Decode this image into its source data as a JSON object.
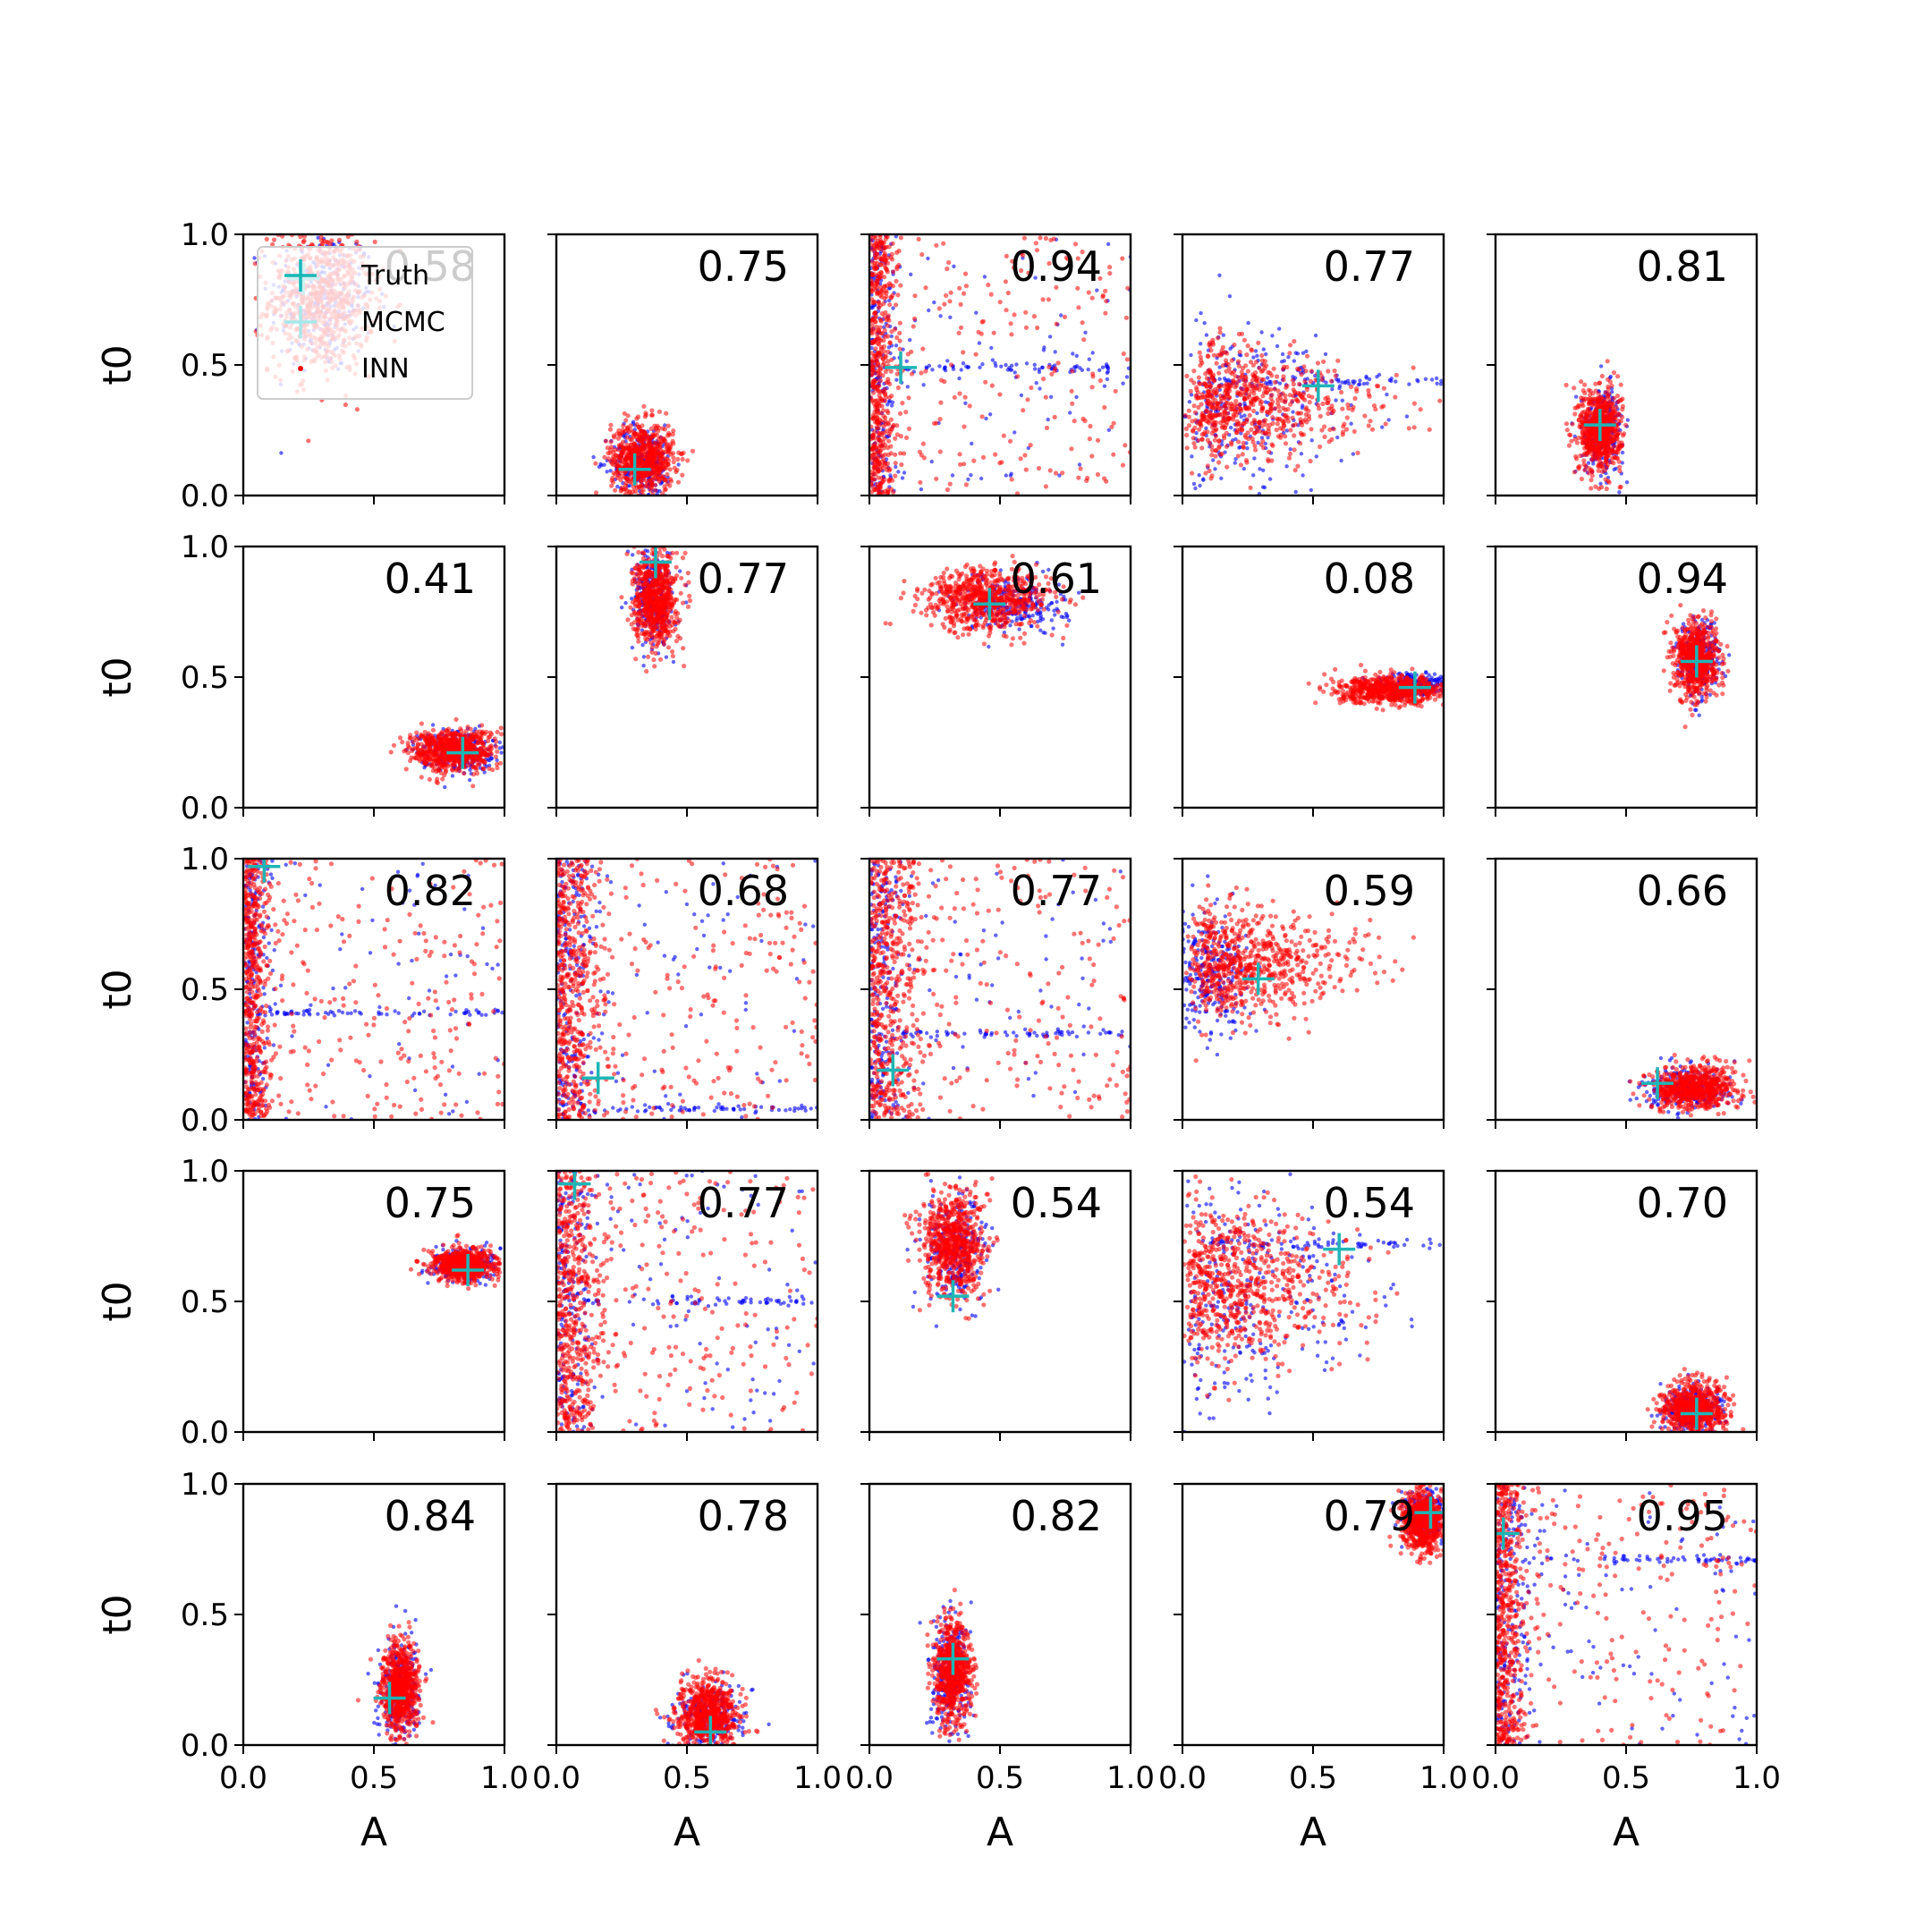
{
  "figure": {
    "rows": 5,
    "cols": 5,
    "xlabel": "A",
    "ylabel": "t0",
    "xlim": [
      0,
      1
    ],
    "ylim": [
      0,
      1
    ],
    "xticks": [
      "0.0",
      "0.5",
      "1.0"
    ],
    "yticks": [
      "0.0",
      "0.5",
      "1.0"
    ],
    "legend": {
      "placement": "upper-left of first panel",
      "entries": [
        {
          "label": "Truth",
          "color": "#17b8b8",
          "marker": "plus"
        },
        {
          "label": "MCMC",
          "color": "#a8e8e8",
          "marker": "plus"
        },
        {
          "label": "INN",
          "color": "#ff0000",
          "marker": "dot"
        }
      ]
    },
    "colors": {
      "truth": "#1fb5b5",
      "mcmc": "#0000ff",
      "inn": "#ff0000"
    }
  },
  "chart_data": [
    {
      "type": "scatter",
      "corner_value": "0.58",
      "truth": {
        "A": 0.23,
        "t0": 0.83
      },
      "inn": {
        "kind": "gauss",
        "cx": 0.3,
        "cy": 0.75,
        "sx": 0.1,
        "sy": 0.14
      },
      "mcmc": {
        "kind": "gauss",
        "cx": 0.3,
        "cy": 0.75,
        "sx": 0.1,
        "sy": 0.14
      }
    },
    {
      "type": "scatter",
      "corner_value": "0.75",
      "truth": {
        "A": 0.3,
        "t0": 0.1
      },
      "inn": {
        "kind": "gauss",
        "cx": 0.33,
        "cy": 0.14,
        "sx": 0.06,
        "sy": 0.07
      },
      "mcmc": {
        "kind": "gauss",
        "cx": 0.33,
        "cy": 0.13,
        "sx": 0.06,
        "sy": 0.07
      }
    },
    {
      "type": "scatter",
      "corner_value": "0.94",
      "truth": {
        "A": 0.12,
        "t0": 0.49
      },
      "inn": {
        "kind": "wall",
        "cx": 0.05,
        "cy": 0.5,
        "w": 0.05
      },
      "mcmc": {
        "kind": "wall",
        "cx": 0.05,
        "cy": 0.5,
        "w": 0.05,
        "line_y": 0.49
      }
    },
    {
      "type": "scatter",
      "corner_value": "0.77",
      "truth": {
        "A": 0.52,
        "t0": 0.42
      },
      "inn": {
        "kind": "fan",
        "cx": 0.1,
        "cy": 0.35,
        "sy": 0.12
      },
      "mcmc": {
        "kind": "fan",
        "cx": 0.1,
        "cy": 0.35,
        "sy": 0.18,
        "line_y": 0.44
      }
    },
    {
      "type": "scatter",
      "corner_value": "0.81",
      "truth": {
        "A": 0.4,
        "t0": 0.27
      },
      "inn": {
        "kind": "gauss",
        "cx": 0.4,
        "cy": 0.25,
        "sx": 0.04,
        "sy": 0.08
      },
      "mcmc": {
        "kind": "gauss",
        "cx": 0.41,
        "cy": 0.25,
        "sx": 0.04,
        "sy": 0.08
      }
    },
    {
      "type": "scatter",
      "corner_value": "0.41",
      "truth": {
        "A": 0.84,
        "t0": 0.21
      },
      "inn": {
        "kind": "gauss",
        "cx": 0.8,
        "cy": 0.22,
        "sx": 0.08,
        "sy": 0.04
      },
      "mcmc": {
        "kind": "gauss",
        "cx": 0.82,
        "cy": 0.22,
        "sx": 0.07,
        "sy": 0.04
      }
    },
    {
      "type": "scatter",
      "corner_value": "0.77",
      "truth": {
        "A": 0.38,
        "t0": 0.94
      },
      "inn": {
        "kind": "gauss",
        "cx": 0.38,
        "cy": 0.8,
        "sx": 0.04,
        "sy": 0.09
      },
      "mcmc": {
        "kind": "gauss",
        "cx": 0.37,
        "cy": 0.8,
        "sx": 0.04,
        "sy": 0.1
      }
    },
    {
      "type": "scatter",
      "corner_value": "0.61",
      "truth": {
        "A": 0.46,
        "t0": 0.78
      },
      "inn": {
        "kind": "gauss",
        "cx": 0.45,
        "cy": 0.8,
        "sx": 0.12,
        "sy": 0.06
      },
      "mcmc": {
        "kind": "gauss",
        "cx": 0.55,
        "cy": 0.78,
        "sx": 0.1,
        "sy": 0.05
      }
    },
    {
      "type": "scatter",
      "corner_value": "0.08",
      "truth": {
        "A": 0.89,
        "t0": 0.46
      },
      "inn": {
        "kind": "gauss",
        "cx": 0.8,
        "cy": 0.45,
        "sx": 0.1,
        "sy": 0.025
      },
      "mcmc": {
        "kind": "gauss",
        "cx": 0.88,
        "cy": 0.47,
        "sx": 0.07,
        "sy": 0.02
      }
    },
    {
      "type": "scatter",
      "corner_value": "0.94",
      "truth": {
        "A": 0.77,
        "t0": 0.56
      },
      "inn": {
        "kind": "gauss",
        "cx": 0.77,
        "cy": 0.57,
        "sx": 0.04,
        "sy": 0.07
      },
      "mcmc": {
        "kind": "gauss",
        "cx": 0.78,
        "cy": 0.57,
        "sx": 0.04,
        "sy": 0.07
      }
    },
    {
      "type": "scatter",
      "corner_value": "0.82",
      "truth": {
        "A": 0.08,
        "t0": 0.97
      },
      "inn": {
        "kind": "wall",
        "cx": 0.05,
        "cy": 0.55,
        "w": 0.05
      },
      "mcmc": {
        "kind": "wall",
        "cx": 0.04,
        "cy": 0.5,
        "w": 0.04,
        "line_y": 0.41
      }
    },
    {
      "type": "scatter",
      "corner_value": "0.68",
      "truth": {
        "A": 0.16,
        "t0": 0.16
      },
      "inn": {
        "kind": "wall",
        "cx": 0.08,
        "cy": 0.45,
        "w": 0.09
      },
      "mcmc": {
        "kind": "wall",
        "cx": 0.06,
        "cy": 0.3,
        "w": 0.07,
        "line_y": 0.04
      }
    },
    {
      "type": "scatter",
      "corner_value": "0.77",
      "truth": {
        "A": 0.09,
        "t0": 0.19
      },
      "inn": {
        "kind": "wall",
        "cx": 0.08,
        "cy": 0.5,
        "w": 0.1
      },
      "mcmc": {
        "kind": "wall",
        "cx": 0.05,
        "cy": 0.5,
        "w": 0.06,
        "line_y": 0.33
      }
    },
    {
      "type": "scatter",
      "corner_value": "0.59",
      "truth": {
        "A": 0.29,
        "t0": 0.54
      },
      "inn": {
        "kind": "fan",
        "cx": 0.1,
        "cy": 0.6,
        "sy": 0.12
      },
      "mcmc": {
        "kind": "gauss",
        "cx": 0.1,
        "cy": 0.55,
        "sx": 0.08,
        "sy": 0.12
      }
    },
    {
      "type": "scatter",
      "corner_value": "0.66",
      "truth": {
        "A": 0.62,
        "t0": 0.14
      },
      "inn": {
        "kind": "gauss",
        "cx": 0.76,
        "cy": 0.12,
        "sx": 0.08,
        "sy": 0.04
      },
      "mcmc": {
        "kind": "gauss",
        "cx": 0.72,
        "cy": 0.12,
        "sx": 0.08,
        "sy": 0.04
      }
    },
    {
      "type": "scatter",
      "corner_value": "0.75",
      "truth": {
        "A": 0.86,
        "t0": 0.62
      },
      "inn": {
        "kind": "gauss",
        "cx": 0.84,
        "cy": 0.64,
        "sx": 0.06,
        "sy": 0.03
      },
      "mcmc": {
        "kind": "gauss",
        "cx": 0.84,
        "cy": 0.64,
        "sx": 0.06,
        "sy": 0.03
      }
    },
    {
      "type": "scatter",
      "corner_value": "0.77",
      "truth": {
        "A": 0.07,
        "t0": 0.95
      },
      "inn": {
        "kind": "wall",
        "cx": 0.06,
        "cy": 0.5,
        "w": 0.08
      },
      "mcmc": {
        "kind": "wall",
        "cx": 0.05,
        "cy": 0.5,
        "w": 0.06,
        "line_y": 0.5
      }
    },
    {
      "type": "scatter",
      "corner_value": "0.54",
      "truth": {
        "A": 0.32,
        "t0": 0.52
      },
      "inn": {
        "kind": "gauss",
        "cx": 0.32,
        "cy": 0.72,
        "sx": 0.06,
        "sy": 0.1
      },
      "mcmc": {
        "kind": "gauss",
        "cx": 0.33,
        "cy": 0.7,
        "sx": 0.06,
        "sy": 0.1
      }
    },
    {
      "type": "scatter",
      "corner_value": "0.54",
      "truth": {
        "A": 0.6,
        "t0": 0.7
      },
      "inn": {
        "kind": "fan",
        "cx": 0.05,
        "cy": 0.55,
        "sy": 0.18
      },
      "mcmc": {
        "kind": "fan",
        "cx": 0.05,
        "cy": 0.5,
        "sy": 0.25,
        "line_y": 0.72
      }
    },
    {
      "type": "scatter",
      "corner_value": "0.70",
      "truth": {
        "A": 0.77,
        "t0": 0.07
      },
      "inn": {
        "kind": "gauss",
        "cx": 0.76,
        "cy": 0.09,
        "sx": 0.06,
        "sy": 0.05
      },
      "mcmc": {
        "kind": "gauss",
        "cx": 0.76,
        "cy": 0.08,
        "sx": 0.06,
        "sy": 0.05
      }
    },
    {
      "type": "scatter",
      "corner_value": "0.84",
      "truth": {
        "A": 0.56,
        "t0": 0.18
      },
      "inn": {
        "kind": "gauss",
        "cx": 0.6,
        "cy": 0.22,
        "sx": 0.035,
        "sy": 0.09
      },
      "mcmc": {
        "kind": "gauss",
        "cx": 0.6,
        "cy": 0.22,
        "sx": 0.04,
        "sy": 0.1
      }
    },
    {
      "type": "scatter",
      "corner_value": "0.78",
      "truth": {
        "A": 0.59,
        "t0": 0.05
      },
      "inn": {
        "kind": "gauss",
        "cx": 0.58,
        "cy": 0.12,
        "sx": 0.06,
        "sy": 0.06
      },
      "mcmc": {
        "kind": "gauss",
        "cx": 0.58,
        "cy": 0.1,
        "sx": 0.06,
        "sy": 0.06
      }
    },
    {
      "type": "scatter",
      "corner_value": "0.82",
      "truth": {
        "A": 0.32,
        "t0": 0.33
      },
      "inn": {
        "kind": "gauss",
        "cx": 0.32,
        "cy": 0.28,
        "sx": 0.035,
        "sy": 0.1
      },
      "mcmc": {
        "kind": "gauss",
        "cx": 0.31,
        "cy": 0.28,
        "sx": 0.035,
        "sy": 0.11
      }
    },
    {
      "type": "scatter",
      "corner_value": "0.79",
      "truth": {
        "A": 0.95,
        "t0": 0.89
      },
      "inn": {
        "kind": "gauss",
        "cx": 0.92,
        "cy": 0.86,
        "sx": 0.04,
        "sy": 0.06
      },
      "mcmc": {
        "kind": "gauss",
        "cx": 0.93,
        "cy": 0.88,
        "sx": 0.04,
        "sy": 0.05
      }
    },
    {
      "type": "scatter",
      "corner_value": "0.95",
      "truth": {
        "A": 0.03,
        "t0": 0.81
      },
      "inn": {
        "kind": "wall",
        "cx": 0.04,
        "cy": 0.5,
        "w": 0.05
      },
      "mcmc": {
        "kind": "wall",
        "cx": 0.05,
        "cy": 0.5,
        "w": 0.07,
        "line_y": 0.71
      }
    }
  ]
}
